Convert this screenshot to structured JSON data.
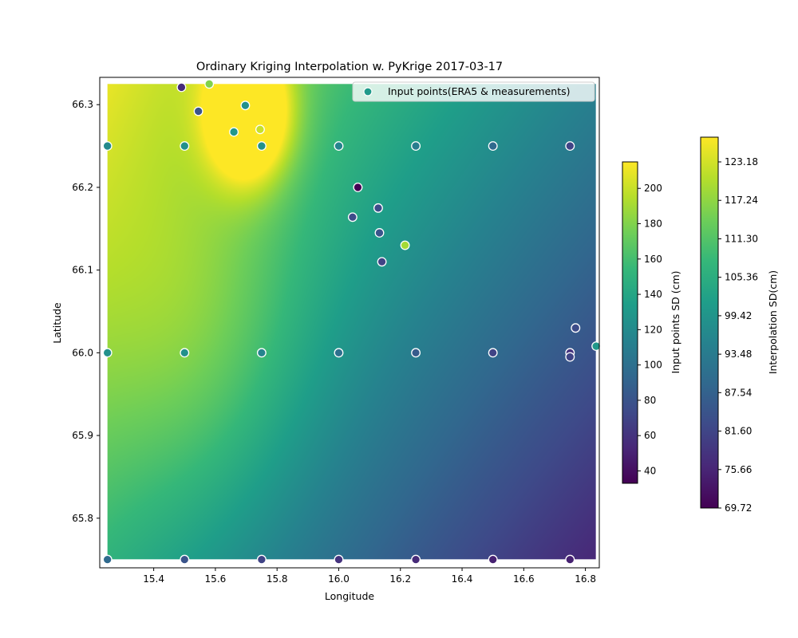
{
  "chart_data": {
    "type": "heatmap+scatter",
    "title": "Ordinary Kriging Interpolation w. PyKrige 2017-03-17",
    "xlabel": "Longitude",
    "ylabel": "Latitude",
    "xlim": [
      15.225,
      16.845
    ],
    "ylim": [
      65.74,
      66.333
    ],
    "grid_extent": {
      "x": [
        15.25,
        16.835
      ],
      "y": [
        65.75,
        66.325
      ]
    },
    "xticks": [
      {
        "value": 15.4,
        "label": "15.4"
      },
      {
        "value": 15.6,
        "label": "15.6"
      },
      {
        "value": 15.8,
        "label": "15.8"
      },
      {
        "value": 16.0,
        "label": "16.0"
      },
      {
        "value": 16.2,
        "label": "16.2"
      },
      {
        "value": 16.4,
        "label": "16.4"
      },
      {
        "value": 16.6,
        "label": "16.6"
      },
      {
        "value": 16.8,
        "label": "16.8"
      }
    ],
    "yticks": [
      {
        "value": 65.8,
        "label": "65.8"
      },
      {
        "value": 65.9,
        "label": "65.9"
      },
      {
        "value": 66.0,
        "label": "66.0"
      },
      {
        "value": 66.1,
        "label": "66.1"
      },
      {
        "value": 66.2,
        "label": "66.2"
      },
      {
        "value": 66.3,
        "label": "66.3"
      }
    ],
    "legend": {
      "label": "Input points(ERA5 & measurements)",
      "placement": "upper right"
    },
    "colormap": "viridis",
    "interpolation_field": {
      "description": "Ordinary kriging surface; maximum near lon 15.7 / lat 66.3, minimum toward lon 16.8 / lat 65.75",
      "vmin": 69.72,
      "vmax": 127.0
    },
    "points_colorbar": {
      "label": "Input points SD (cm)",
      "vmin": 33,
      "vmax": 215,
      "ticks": [
        {
          "value": 40,
          "label": "40"
        },
        {
          "value": 60,
          "label": "60"
        },
        {
          "value": 80,
          "label": "80"
        },
        {
          "value": 100,
          "label": "100"
        },
        {
          "value": 120,
          "label": "120"
        },
        {
          "value": 140,
          "label": "140"
        },
        {
          "value": 160,
          "label": "160"
        },
        {
          "value": 180,
          "label": "180"
        },
        {
          "value": 200,
          "label": "200"
        }
      ]
    },
    "interp_colorbar": {
      "label": "Interpolation SD(cm)",
      "vmin": 69.72,
      "vmax": 127.0,
      "ticks": [
        {
          "value": 69.72,
          "label": "69.72"
        },
        {
          "value": 75.66,
          "label": "75.66"
        },
        {
          "value": 81.6,
          "label": "81.60"
        },
        {
          "value": 87.54,
          "label": "87.54"
        },
        {
          "value": 93.48,
          "label": "93.48"
        },
        {
          "value": 99.42,
          "label": "99.42"
        },
        {
          "value": 105.36,
          "label": "105.36"
        },
        {
          "value": 111.3,
          "label": "111.30"
        },
        {
          "value": 117.24,
          "label": "117.24"
        },
        {
          "value": 123.18,
          "label": "123.18"
        }
      ]
    },
    "points": [
      {
        "lon": 15.25,
        "lat": 66.25,
        "sd": 120
      },
      {
        "lon": 15.5,
        "lat": 66.25,
        "sd": 125
      },
      {
        "lon": 15.75,
        "lat": 66.25,
        "sd": 125
      },
      {
        "lon": 16.0,
        "lat": 66.25,
        "sd": 115
      },
      {
        "lon": 16.25,
        "lat": 66.25,
        "sd": 110
      },
      {
        "lon": 16.5,
        "lat": 66.25,
        "sd": 95
      },
      {
        "lon": 16.75,
        "lat": 66.25,
        "sd": 70
      },
      {
        "lon": 15.25,
        "lat": 66.0,
        "sd": 125
      },
      {
        "lon": 15.5,
        "lat": 66.0,
        "sd": 125
      },
      {
        "lon": 15.75,
        "lat": 66.0,
        "sd": 115
      },
      {
        "lon": 16.0,
        "lat": 66.0,
        "sd": 100
      },
      {
        "lon": 16.25,
        "lat": 66.0,
        "sd": 85
      },
      {
        "lon": 16.5,
        "lat": 66.0,
        "sd": 70
      },
      {
        "lon": 16.75,
        "lat": 66.0,
        "sd": 60
      },
      {
        "lon": 15.25,
        "lat": 65.75,
        "sd": 95
      },
      {
        "lon": 15.5,
        "lat": 65.75,
        "sd": 80
      },
      {
        "lon": 15.75,
        "lat": 65.75,
        "sd": 70
      },
      {
        "lon": 16.0,
        "lat": 65.75,
        "sd": 60
      },
      {
        "lon": 16.25,
        "lat": 65.75,
        "sd": 55
      },
      {
        "lon": 16.5,
        "lat": 65.75,
        "sd": 50
      },
      {
        "lon": 16.75,
        "lat": 65.75,
        "sd": 50
      },
      {
        "lon": 15.49,
        "lat": 66.321,
        "sd": 55
      },
      {
        "lon": 15.58,
        "lat": 66.325,
        "sd": 180
      },
      {
        "lon": 15.545,
        "lat": 66.292,
        "sd": 80
      },
      {
        "lon": 15.697,
        "lat": 66.299,
        "sd": 125
      },
      {
        "lon": 15.66,
        "lat": 66.267,
        "sd": 130
      },
      {
        "lon": 15.745,
        "lat": 66.27,
        "sd": 200
      },
      {
        "lon": 16.062,
        "lat": 66.2,
        "sd": 33
      },
      {
        "lon": 16.128,
        "lat": 66.175,
        "sd": 75
      },
      {
        "lon": 16.045,
        "lat": 66.164,
        "sd": 75
      },
      {
        "lon": 16.132,
        "lat": 66.145,
        "sd": 80
      },
      {
        "lon": 16.215,
        "lat": 66.13,
        "sd": 190
      },
      {
        "lon": 16.14,
        "lat": 66.11,
        "sd": 70
      },
      {
        "lon": 16.768,
        "lat": 66.03,
        "sd": 75
      },
      {
        "lon": 16.835,
        "lat": 66.008,
        "sd": 130
      },
      {
        "lon": 16.75,
        "lat": 65.995,
        "sd": 70
      }
    ]
  }
}
